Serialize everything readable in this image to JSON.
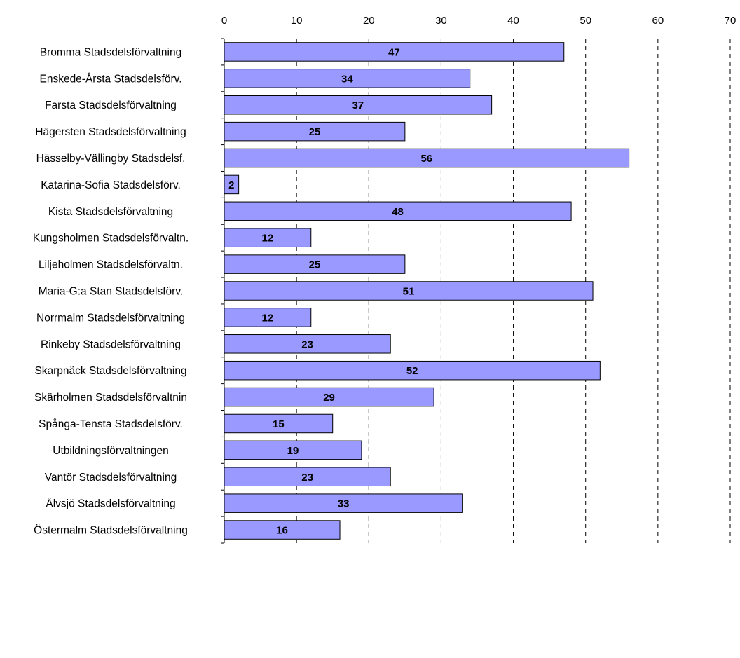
{
  "chart_data": {
    "type": "bar",
    "orientation": "horizontal",
    "title": "",
    "xlabel": "",
    "ylabel": "",
    "xlim": [
      0,
      70
    ],
    "x_ticks": [
      0,
      10,
      20,
      30,
      40,
      50,
      60,
      70
    ],
    "x_axis_position": "top",
    "grid": "vertical dashed",
    "legend": "none",
    "bar_color": "#9999ff",
    "bar_border_color": "#000000",
    "categories": [
      "Bromma Stadsdelsförvaltning",
      "Enskede-Årsta Stadsdelsförv.",
      "Farsta Stadsdelsförvaltning",
      "Hägersten Stadsdelsförvaltning",
      "Hässelby-Vällingby Stadsdelsf.",
      "Katarina-Sofia Stadsdelsförv.",
      "Kista Stadsdelsförvaltning",
      "Kungsholmen Stadsdelsförvaltn.",
      "Liljeholmen Stadsdelsförvaltn.",
      "Maria-G:a Stan Stadsdelsförv.",
      "Norrmalm Stadsdelsförvaltning",
      "Rinkeby Stadsdelsförvaltning",
      "Skarpnäck Stadsdelsförvaltning",
      "Skärholmen Stadsdelsförvaltnin",
      "Spånga-Tensta Stadsdelsförv.",
      "Utbildningsförvaltningen",
      "Vantör Stadsdelsförvaltning",
      "Älvsjö Stadsdelsförvaltning",
      "Östermalm Stadsdelsförvaltning"
    ],
    "values": [
      47,
      34,
      37,
      25,
      56,
      2,
      48,
      12,
      25,
      51,
      12,
      23,
      52,
      29,
      15,
      19,
      23,
      33,
      16
    ]
  }
}
